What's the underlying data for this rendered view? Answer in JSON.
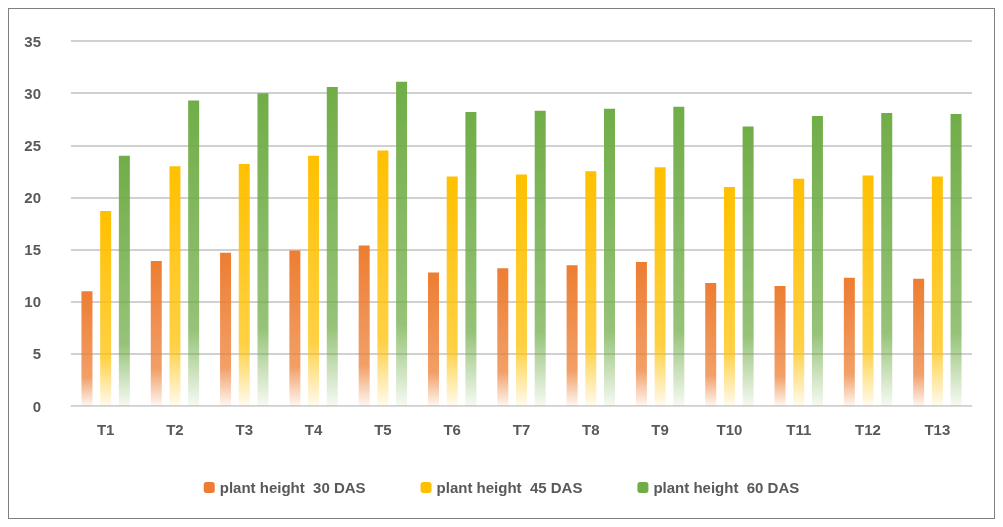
{
  "chart_data": {
    "type": "bar",
    "categories": [
      "T1",
      "T2",
      "T3",
      "T4",
      "T5",
      "T6",
      "T7",
      "T8",
      "T9",
      "T10",
      "T11",
      "T12",
      "T13"
    ],
    "series": [
      {
        "name": "plant height  30 DAS",
        "color": "#ed7d31",
        "values": [
          11,
          13.9,
          14.7,
          14.9,
          15.4,
          12.8,
          13.2,
          13.5,
          13.8,
          11.8,
          11.5,
          12.3,
          12.2
        ]
      },
      {
        "name": "plant height  45 DAS",
        "color": "#ffc000",
        "values": [
          18.7,
          23,
          23.2,
          24,
          24.5,
          22,
          22.2,
          22.5,
          22.9,
          21,
          21.8,
          22.1,
          22
        ]
      },
      {
        "name": "plant height  60 DAS",
        "color": "#70ad47",
        "values": [
          24,
          29.3,
          30,
          30.6,
          31.1,
          28.2,
          28.3,
          28.5,
          28.7,
          26.8,
          27.8,
          28.1,
          28
        ]
      }
    ],
    "ylim": [
      0,
      35
    ],
    "yticks": [
      0,
      5,
      10,
      15,
      20,
      25,
      30,
      35
    ],
    "grid": "y",
    "legend": "bottom"
  }
}
